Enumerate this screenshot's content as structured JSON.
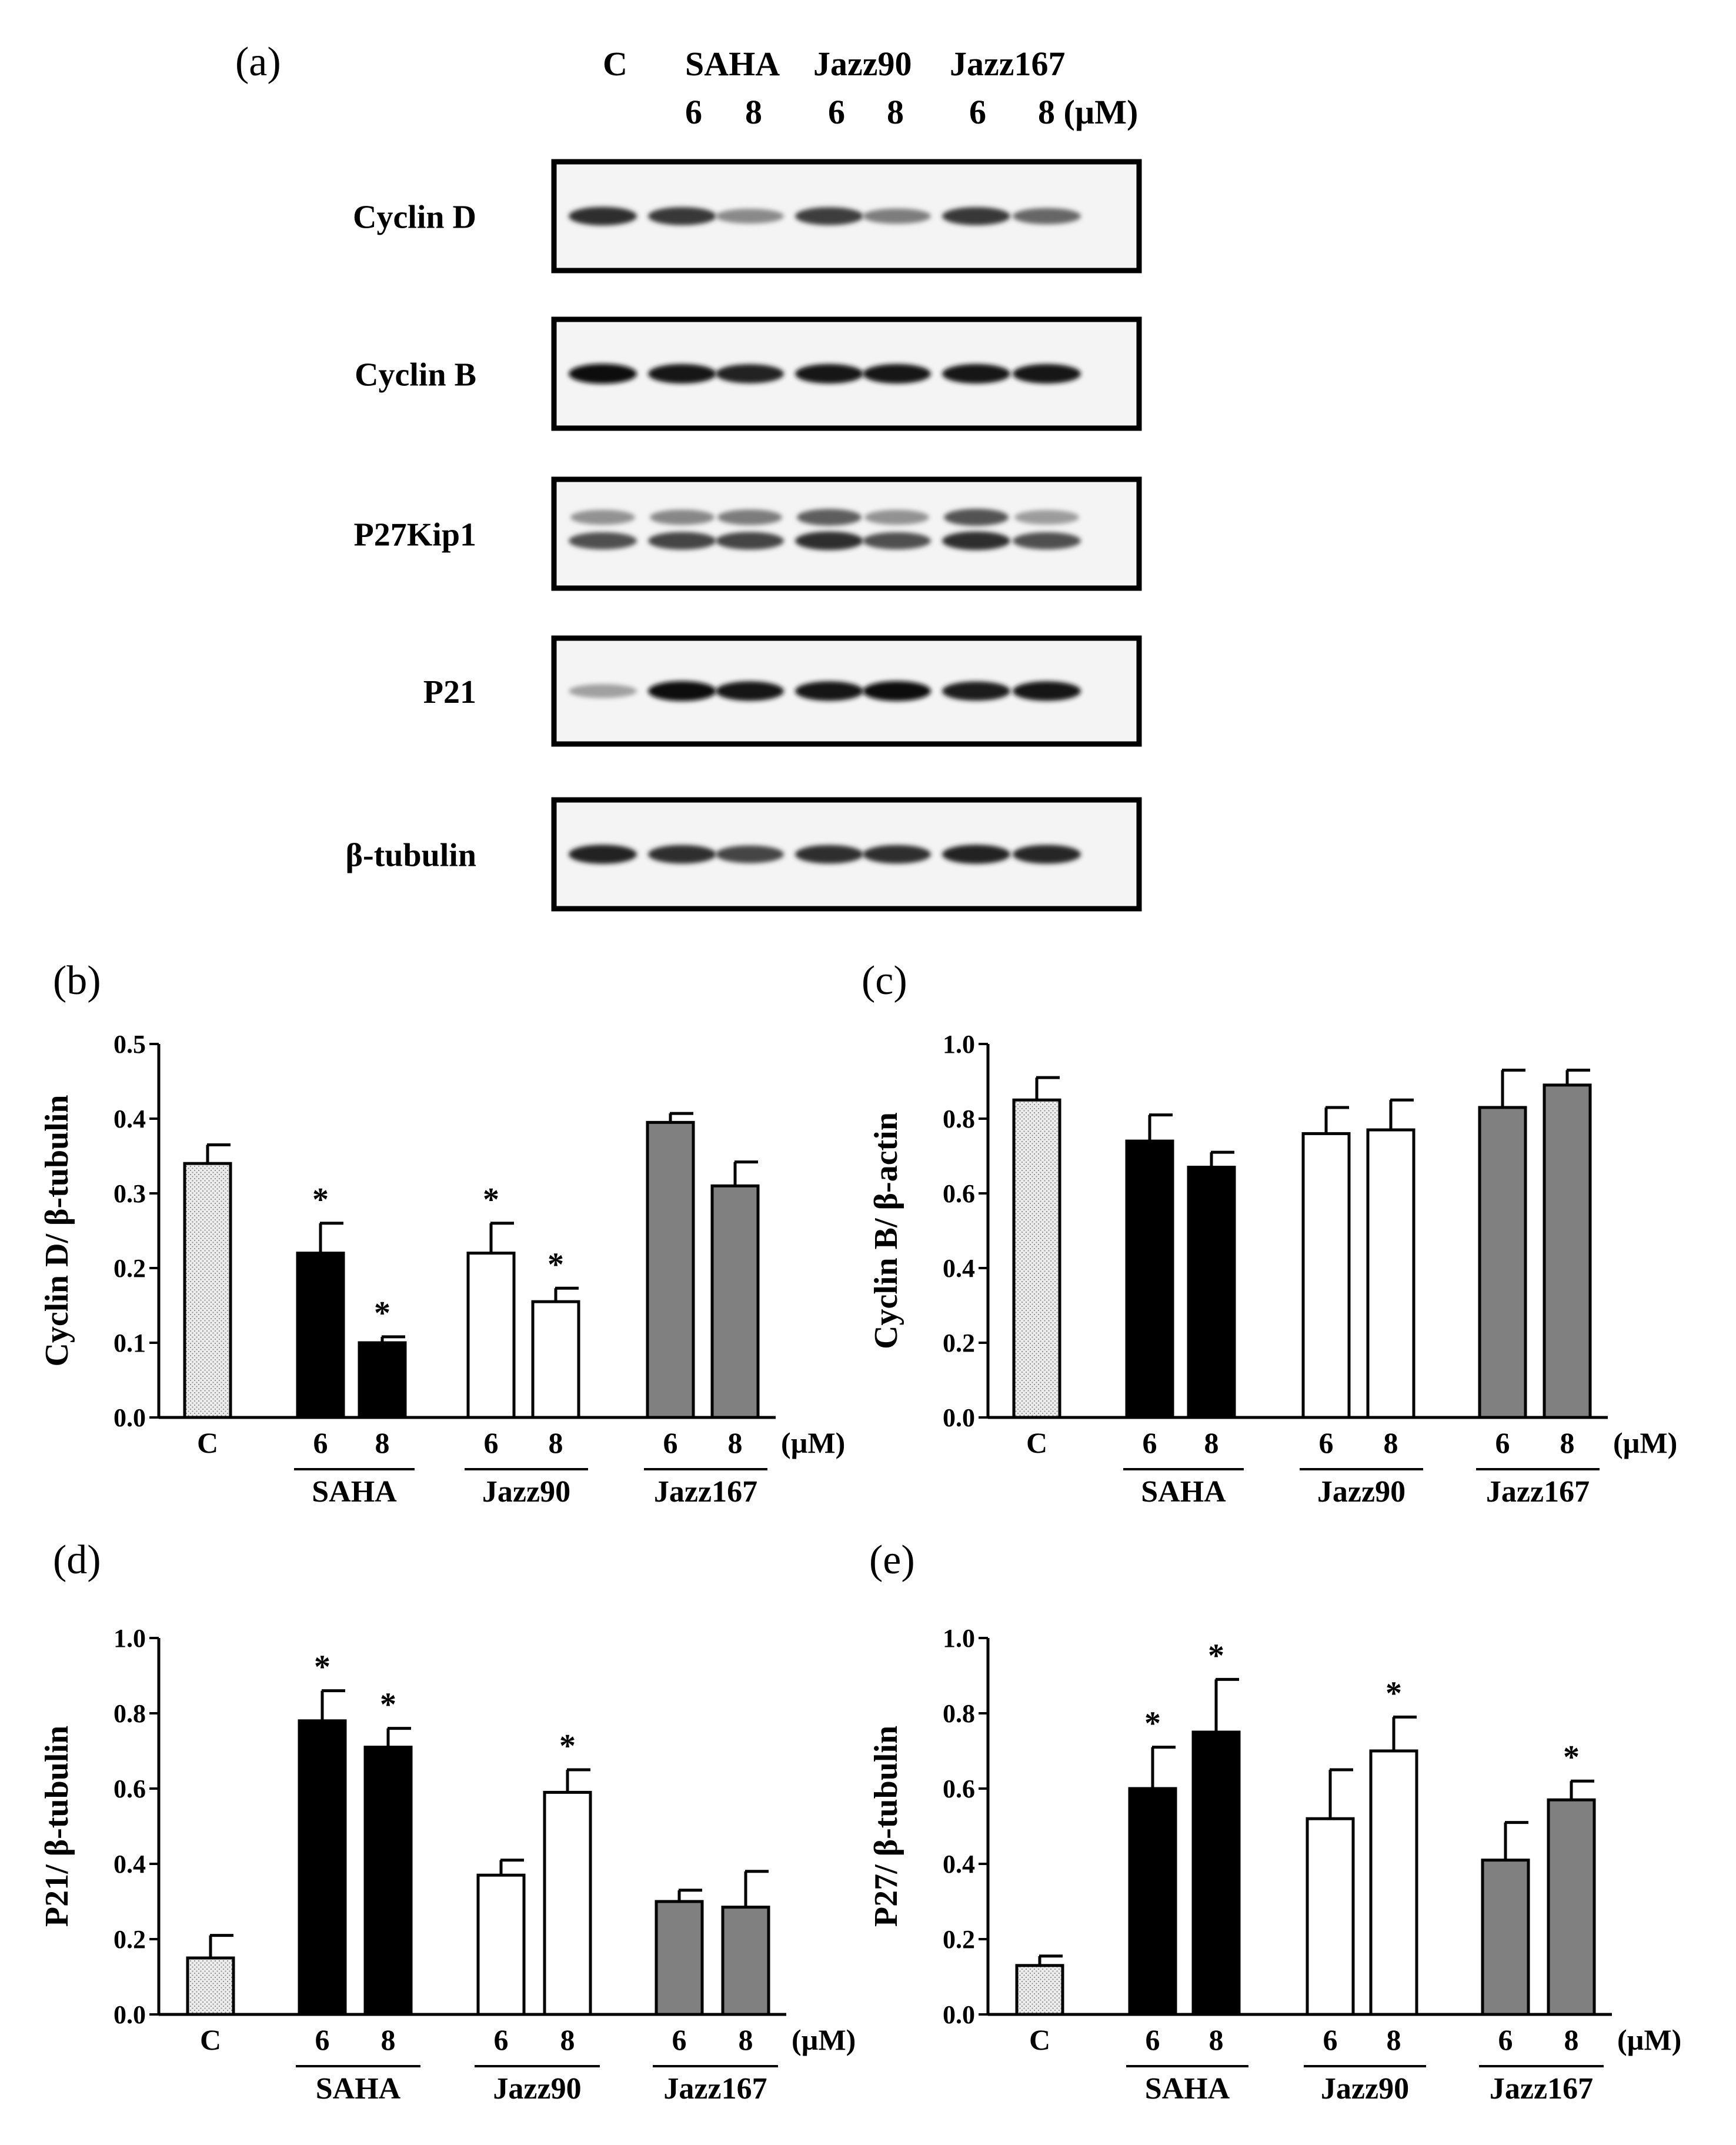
{
  "panel_labels": {
    "a": "(a)",
    "b": "(b)",
    "c": "(c)",
    "d": "(d)",
    "e": "(e)"
  },
  "blot": {
    "groups": [
      "C",
      "SAHA",
      "Jazz90",
      "Jazz167"
    ],
    "doses": [
      "6",
      "8",
      "6",
      "8",
      "6",
      "8 (µM)"
    ],
    "proteins": [
      "Cyclin D",
      "Cyclin B",
      "P27Kip1",
      "P21",
      "β-tubulin"
    ],
    "band_intensity": [
      [
        0.85,
        0.8,
        0.45,
        0.78,
        0.5,
        0.8,
        0.6
      ],
      [
        1.0,
        0.95,
        0.9,
        0.95,
        0.95,
        0.95,
        0.95
      ],
      [
        0.7,
        0.75,
        0.75,
        0.85,
        0.7,
        0.85,
        0.7
      ],
      [
        0.35,
        1.0,
        0.95,
        0.95,
        1.0,
        0.92,
        0.95
      ],
      [
        0.9,
        0.85,
        0.75,
        0.85,
        0.85,
        0.9,
        0.88
      ]
    ],
    "upper_band_intensity": [
      0.45,
      0.5,
      0.55,
      0.7,
      0.45,
      0.75,
      0.4
    ]
  },
  "chart_data": [
    {
      "panel": "(b)",
      "type": "bar",
      "ylabel": "Cyclin D/ β-tubulin",
      "ylim": [
        0,
        0.5
      ],
      "yticks": [
        "0.0",
        "0.1",
        "0.2",
        "0.3",
        "0.4",
        "0.5"
      ],
      "categories": [
        "C",
        "6",
        "8",
        "6",
        "8",
        "6",
        "8"
      ],
      "unit_label": "(µM)",
      "group_labels": [
        "SAHA",
        "Jazz90",
        "Jazz167"
      ],
      "values": [
        0.34,
        0.22,
        0.1,
        0.22,
        0.155,
        0.395,
        0.31
      ],
      "errors": [
        0.025,
        0.04,
        0.008,
        0.04,
        0.018,
        0.012,
        0.032
      ],
      "significant": [
        false,
        true,
        true,
        true,
        true,
        false,
        false
      ],
      "fills": [
        "#e6e6e6",
        "#000000",
        "#000000",
        "#ffffff",
        "#ffffff",
        "#808080",
        "#808080"
      ]
    },
    {
      "panel": "(c)",
      "type": "bar",
      "ylabel": "Cyclin B/ β-actin",
      "ylim": [
        0,
        1.0
      ],
      "yticks": [
        "0.0",
        "0.2",
        "0.4",
        "0.6",
        "0.8",
        "1.0"
      ],
      "categories": [
        "C",
        "6",
        "8",
        "6",
        "8",
        "6",
        "8"
      ],
      "unit_label": "(µM)",
      "group_labels": [
        "SAHA",
        "Jazz90",
        "Jazz167"
      ],
      "values": [
        0.85,
        0.74,
        0.67,
        0.76,
        0.77,
        0.83,
        0.89
      ],
      "errors": [
        0.06,
        0.07,
        0.04,
        0.07,
        0.08,
        0.1,
        0.04
      ],
      "significant": [
        false,
        false,
        false,
        false,
        false,
        false,
        false
      ],
      "fills": [
        "#e6e6e6",
        "#000000",
        "#000000",
        "#ffffff",
        "#ffffff",
        "#808080",
        "#808080"
      ]
    },
    {
      "panel": "(d)",
      "type": "bar",
      "ylabel": "P21/ β-tubulin",
      "ylim": [
        0,
        1.0
      ],
      "yticks": [
        "0.0",
        "0.2",
        "0.4",
        "0.6",
        "0.8",
        "1.0"
      ],
      "categories": [
        "C",
        "6",
        "8",
        "6",
        "8",
        "6",
        "8"
      ],
      "unit_label": "(µM)",
      "group_labels": [
        "SAHA",
        "Jazz90",
        "Jazz167"
      ],
      "values": [
        0.15,
        0.78,
        0.71,
        0.37,
        0.59,
        0.3,
        0.285
      ],
      "errors": [
        0.06,
        0.08,
        0.05,
        0.04,
        0.06,
        0.03,
        0.095
      ],
      "significant": [
        false,
        true,
        true,
        false,
        true,
        false,
        false
      ],
      "fills": [
        "#e6e6e6",
        "#000000",
        "#000000",
        "#ffffff",
        "#ffffff",
        "#808080",
        "#808080"
      ]
    },
    {
      "panel": "(e)",
      "type": "bar",
      "ylabel": "P27/ β-tubulin",
      "ylim": [
        0,
        1.0
      ],
      "yticks": [
        "0.0",
        "0.2",
        "0.4",
        "0.6",
        "0.8",
        "1.0"
      ],
      "categories": [
        "C",
        "6",
        "8",
        "6",
        "8",
        "6",
        "8"
      ],
      "unit_label": "(µM)",
      "group_labels": [
        "SAHA",
        "Jazz90",
        "Jazz167"
      ],
      "values": [
        0.13,
        0.6,
        0.75,
        0.52,
        0.7,
        0.41,
        0.57
      ],
      "errors": [
        0.025,
        0.11,
        0.14,
        0.13,
        0.09,
        0.1,
        0.05
      ],
      "significant": [
        false,
        true,
        true,
        false,
        true,
        false,
        true
      ],
      "fills": [
        "#e6e6e6",
        "#000000",
        "#000000",
        "#ffffff",
        "#ffffff",
        "#808080",
        "#808080"
      ]
    }
  ]
}
